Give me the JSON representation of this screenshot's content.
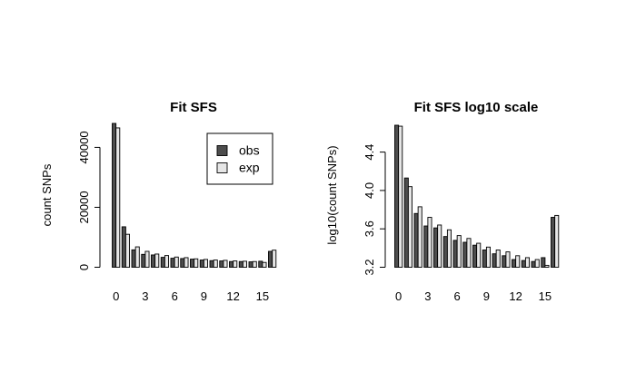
{
  "chart_data": [
    {
      "type": "bar",
      "title": "Fit SFS",
      "xlabel": "",
      "ylabel": "count SNPs",
      "categories": [
        "0",
        "1",
        "2",
        "3",
        "4",
        "5",
        "6",
        "7",
        "8",
        "9",
        "10",
        "11",
        "12",
        "13",
        "14",
        "15",
        "16"
      ],
      "x_tick_labels": [
        "0",
        "3",
        "6",
        "9",
        "12",
        "15"
      ],
      "y_ticks": [
        0,
        20000,
        40000
      ],
      "y_tick_labels": [
        "0",
        "20000",
        "40000"
      ],
      "ylim": [
        0,
        48000
      ],
      "legend": {
        "placement": "top-right",
        "entries": [
          "obs",
          "exp"
        ]
      },
      "series": [
        {
          "name": "obs",
          "color": "#4d4d4d",
          "values": [
            48000,
            13500,
            5800,
            4300,
            4100,
            3300,
            3000,
            2900,
            2700,
            2400,
            2200,
            2100,
            1900,
            1900,
            1800,
            2000,
            5300
          ]
        },
        {
          "name": "exp",
          "color": "#e6e6e6",
          "values": [
            46500,
            11000,
            6800,
            5300,
            4400,
            3900,
            3400,
            3200,
            2800,
            2600,
            2400,
            2300,
            2100,
            2000,
            1900,
            1600,
            5700
          ]
        }
      ]
    },
    {
      "type": "bar",
      "title": "Fit SFS log10 scale",
      "xlabel": "",
      "ylabel": "log10(count SNPs)",
      "categories": [
        "0",
        "1",
        "2",
        "3",
        "4",
        "5",
        "6",
        "7",
        "8",
        "9",
        "10",
        "11",
        "12",
        "13",
        "14",
        "15",
        "16"
      ],
      "x_tick_labels": [
        "0",
        "3",
        "6",
        "9",
        "12",
        "15"
      ],
      "y_ticks": [
        3.2,
        3.6,
        4.0,
        4.4
      ],
      "y_tick_labels": [
        "3.2",
        "3.6",
        "4.0",
        "4.4"
      ],
      "ylim": [
        3.2,
        4.68
      ],
      "legend": {
        "placement": "none",
        "entries": []
      },
      "series": [
        {
          "name": "obs",
          "color": "#4d4d4d",
          "values": [
            4.68,
            4.13,
            3.76,
            3.63,
            3.61,
            3.52,
            3.48,
            3.46,
            3.43,
            3.38,
            3.34,
            3.32,
            3.28,
            3.27,
            3.26,
            3.3,
            3.72
          ]
        },
        {
          "name": "exp",
          "color": "#e6e6e6",
          "values": [
            4.67,
            4.04,
            3.83,
            3.72,
            3.64,
            3.59,
            3.53,
            3.5,
            3.45,
            3.41,
            3.38,
            3.36,
            3.32,
            3.3,
            3.28,
            3.22,
            3.74
          ]
        }
      ]
    }
  ]
}
